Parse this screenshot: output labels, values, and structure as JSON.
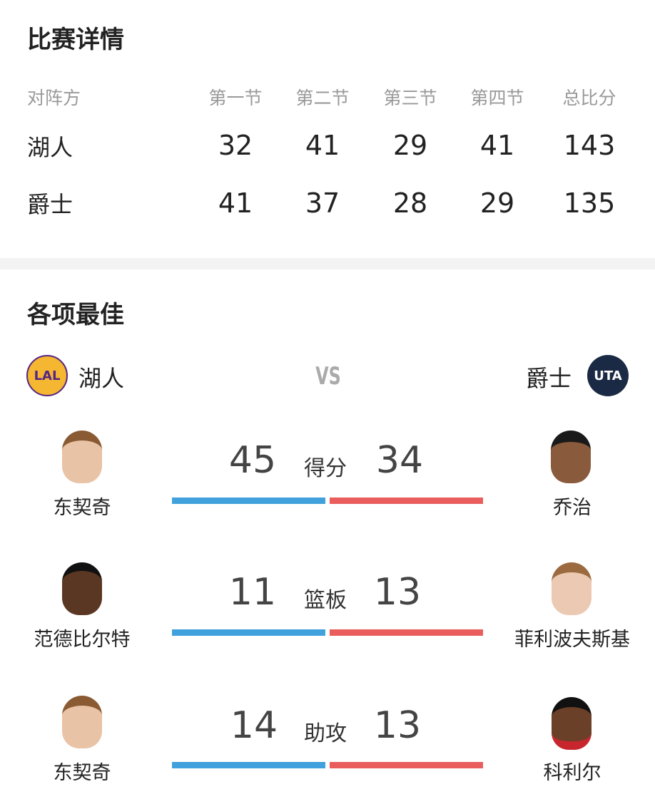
{
  "details": {
    "title": "比赛详情",
    "headers": [
      "对阵方",
      "第一节",
      "第二节",
      "第三节",
      "第四节",
      "总比分"
    ],
    "rows": [
      {
        "team": "湖人",
        "scores": [
          "32",
          "41",
          "29",
          "41",
          "143"
        ]
      },
      {
        "team": "爵士",
        "scores": [
          "41",
          "37",
          "28",
          "29",
          "135"
        ]
      }
    ]
  },
  "best": {
    "title": "各项最佳",
    "home": {
      "name": "湖人",
      "logo": "LAL"
    },
    "vs": "VS",
    "away": {
      "name": "爵士",
      "logo": "UTA"
    },
    "stats": [
      {
        "label": "得分",
        "home_value": "45",
        "away_value": "34",
        "home_player": "东契奇",
        "away_player": "乔治"
      },
      {
        "label": "篮板",
        "home_value": "11",
        "away_value": "13",
        "home_player": "范德比尔特",
        "away_player": "菲利波夫斯基"
      },
      {
        "label": "助攻",
        "home_value": "14",
        "away_value": "13",
        "home_player": "东契奇",
        "away_player": "科利尔"
      }
    ]
  },
  "colors": {
    "home_bar": "#41a1dc",
    "away_bar": "#ea5d5d"
  }
}
